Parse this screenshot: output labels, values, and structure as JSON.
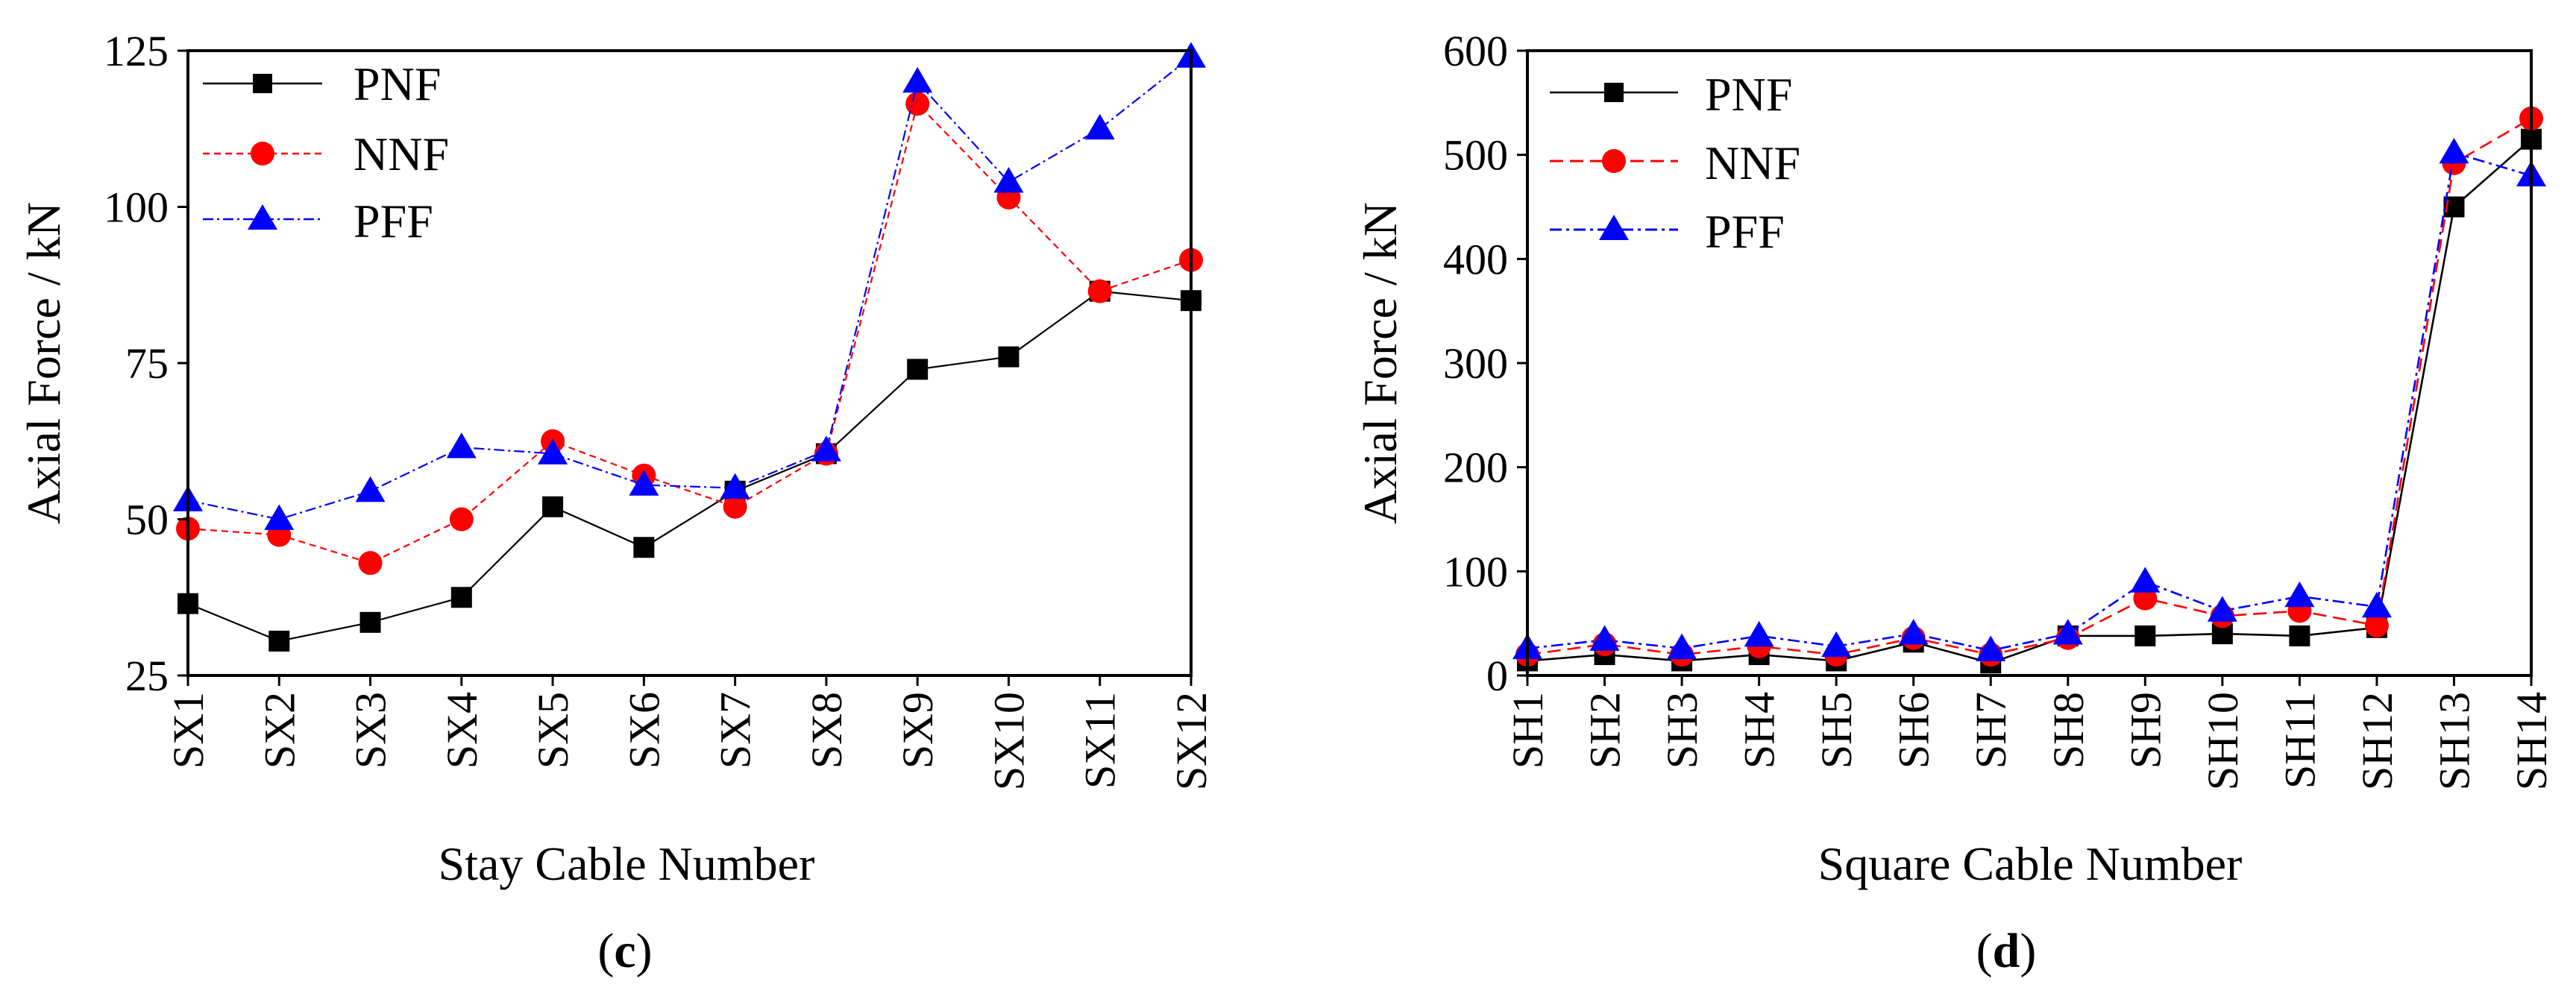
{
  "chart_data": [
    {
      "id": "c",
      "type": "line",
      "panel_label": "c",
      "xlabel": "Stay Cable Number",
      "ylabel": "Axial Force / kN",
      "categories": [
        "SX1",
        "SX2",
        "SX3",
        "SX4",
        "SX5",
        "SX6",
        "SX7",
        "SX8",
        "SX9",
        "SX10",
        "SX11",
        "SX12"
      ],
      "ylim": [
        25,
        125
      ],
      "yticks": [
        25,
        50,
        75,
        100,
        125
      ],
      "grid": false,
      "legend_position": "top-left",
      "series": [
        {
          "name": "PNF",
          "color": "#000000",
          "marker": "square",
          "line": "solid",
          "values": [
            36.5,
            30.5,
            33.5,
            37.5,
            52,
            45.5,
            54.5,
            60.5,
            74,
            76,
            86.5,
            85
          ]
        },
        {
          "name": "NNF",
          "color": "#ff0000",
          "marker": "circle",
          "line": "dash",
          "values": [
            48.5,
            47.5,
            43,
            50,
            62.5,
            57,
            52,
            60.5,
            116.5,
            101.5,
            86.5,
            91.5
          ]
        },
        {
          "name": "PFF",
          "color": "#0000ff",
          "marker": "triangle",
          "line": "dashdot",
          "values": [
            53,
            50,
            54.5,
            61.5,
            60.5,
            55.5,
            55,
            61,
            120,
            104,
            112.5,
            124
          ]
        }
      ]
    },
    {
      "id": "d",
      "type": "line",
      "panel_label": "d",
      "xlabel": "Square Cable Number",
      "ylabel": "Axial Force / kN",
      "categories": [
        "SH1",
        "SH2",
        "SH3",
        "SH4",
        "SH5",
        "SH6",
        "SH7",
        "SH8",
        "SH9",
        "SH10",
        "SH11",
        "SH12",
        "SH13",
        "SH14"
      ],
      "ylim": [
        0,
        600
      ],
      "yticks": [
        0,
        100,
        200,
        300,
        400,
        500,
        600
      ],
      "grid": false,
      "legend_position": "top-left",
      "series": [
        {
          "name": "PNF",
          "color": "#000000",
          "marker": "square",
          "line": "solid",
          "values": [
            14,
            20,
            14,
            20,
            14,
            32,
            12,
            38,
            38,
            40,
            38,
            46,
            450,
            515
          ]
        },
        {
          "name": "NNF",
          "color": "#ff0000",
          "marker": "circle",
          "line": "dash",
          "values": [
            20,
            30,
            20,
            28,
            20,
            36,
            20,
            36,
            74,
            57,
            62,
            48,
            492,
            535
          ]
        },
        {
          "name": "PFF",
          "color": "#0000ff",
          "marker": "triangle",
          "line": "dashdot",
          "values": [
            26,
            34,
            26,
            38,
            28,
            40,
            24,
            40,
            90,
            62,
            76,
            66,
            502,
            480
          ]
        }
      ]
    }
  ]
}
